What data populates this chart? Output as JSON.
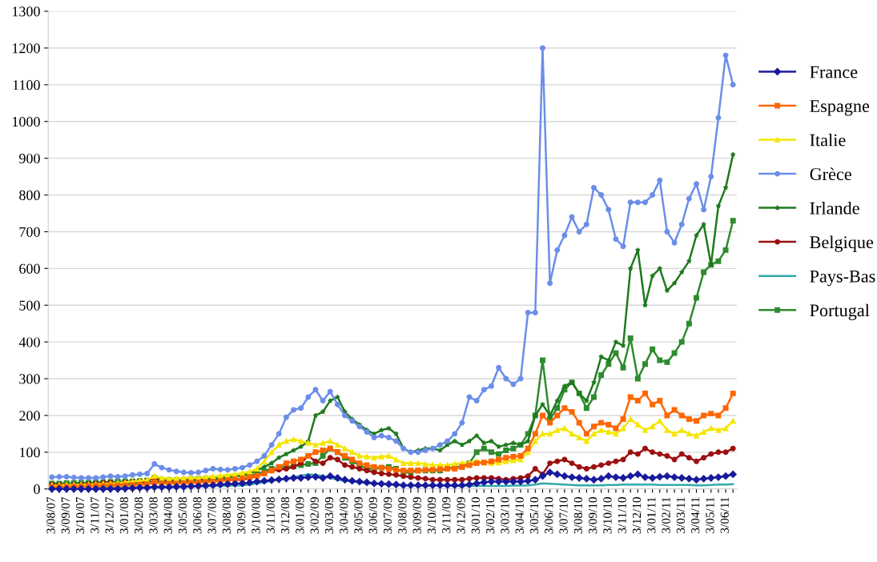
{
  "chart_data": {
    "type": "line",
    "categories": [
      "3/08/07",
      null,
      "3/09/07",
      null,
      "3/10/07",
      null,
      "3/11/07",
      null,
      "3/12/07",
      null,
      "3/01/08",
      null,
      "3/02/08",
      null,
      "3/03/08",
      null,
      "3/04/08",
      null,
      "3/05/08",
      null,
      "3/06/08",
      null,
      "3/07/08",
      null,
      "3/08/08",
      null,
      "3/09/08",
      null,
      "3/10/08",
      null,
      "3/11/08",
      null,
      "3/12/08",
      null,
      "3/01/09",
      null,
      "3/02/09",
      null,
      "3/03/09",
      null,
      "3/04/09",
      null,
      "3/05/09",
      null,
      "3/06/09",
      null,
      "3/07/09",
      null,
      "3/08/09",
      null,
      "3/09/09",
      null,
      "3/10/09",
      null,
      "3/11/09",
      null,
      "3/12/09",
      null,
      "3/01/10",
      null,
      "3/02/10",
      null,
      "3/03/10",
      null,
      "3/04/10",
      null,
      "3/05/10",
      null,
      "3/06/10",
      null,
      "3/07/10",
      null,
      "3/08/10",
      null,
      "3/09/10",
      null,
      "3/10/10",
      null,
      "3/11/10",
      null,
      "3/12/10",
      null,
      "3/01/11",
      null,
      "3/02/11",
      null,
      "3/03/11",
      null,
      "3/04/11",
      null,
      "3/05/11",
      null,
      "3/06/11",
      null
    ],
    "series": [
      {
        "name": "France",
        "color": "#1a1a9c",
        "marker": "diamond",
        "values": [
          0,
          0,
          0,
          0,
          0,
          0,
          0,
          0,
          0,
          0,
          1,
          2,
          3,
          3,
          5,
          5,
          5,
          6,
          6,
          7,
          8,
          9,
          10,
          12,
          13,
          14,
          15,
          17,
          20,
          22,
          24,
          26,
          28,
          30,
          30,
          32,
          33,
          30,
          35,
          30,
          25,
          22,
          20,
          18,
          15,
          14,
          13,
          12,
          10,
          10,
          10,
          10,
          10,
          10,
          10,
          10,
          10,
          12,
          15,
          18,
          20,
          20,
          20,
          20,
          20,
          22,
          25,
          35,
          45,
          40,
          35,
          32,
          30,
          28,
          25,
          28,
          35,
          32,
          30,
          35,
          40,
          32,
          30,
          33,
          35,
          32,
          30,
          28,
          25,
          28,
          30,
          32,
          35,
          40
        ]
      },
      {
        "name": "Espagne",
        "color": "#ff6600",
        "marker": "square",
        "values": [
          5,
          5,
          6,
          6,
          7,
          7,
          8,
          8,
          9,
          10,
          10,
          11,
          12,
          13,
          18,
          15,
          15,
          15,
          16,
          17,
          18,
          19,
          20,
          22,
          24,
          26,
          28,
          32,
          36,
          42,
          50,
          60,
          70,
          75,
          80,
          90,
          100,
          105,
          110,
          100,
          90,
          80,
          70,
          65,
          60,
          58,
          55,
          52,
          50,
          50,
          50,
          52,
          52,
          54,
          55,
          55,
          60,
          65,
          70,
          72,
          75,
          80,
          85,
          88,
          90,
          110,
          150,
          200,
          180,
          200,
          220,
          210,
          180,
          150,
          170,
          180,
          175,
          165,
          190,
          250,
          240,
          260,
          230,
          240,
          200,
          215,
          200,
          190,
          185,
          200,
          205,
          200,
          220,
          260
        ]
      },
      {
        "name": "Italie",
        "color": "#f5e600",
        "marker": "triangle",
        "values": [
          10,
          10,
          11,
          11,
          12,
          12,
          13,
          14,
          15,
          16,
          18,
          20,
          22,
          24,
          35,
          30,
          28,
          28,
          30,
          30,
          30,
          32,
          34,
          36,
          38,
          40,
          43,
          47,
          55,
          75,
          100,
          120,
          130,
          135,
          130,
          125,
          120,
          125,
          130,
          120,
          110,
          100,
          90,
          88,
          85,
          88,
          90,
          80,
          70,
          70,
          70,
          68,
          65,
          65,
          65,
          68,
          70,
          72,
          75,
          72,
          70,
          72,
          75,
          78,
          80,
          100,
          130,
          150,
          150,
          160,
          165,
          150,
          140,
          130,
          150,
          160,
          155,
          150,
          165,
          190,
          175,
          160,
          170,
          185,
          160,
          150,
          160,
          150,
          145,
          155,
          165,
          160,
          165,
          185
        ]
      },
      {
        "name": "Grèce",
        "color": "#6b8ee8",
        "marker": "circle",
        "values": [
          32,
          33,
          33,
          31,
          30,
          30,
          30,
          32,
          35,
          33,
          35,
          38,
          40,
          42,
          68,
          58,
          52,
          48,
          45,
          44,
          45,
          50,
          55,
          53,
          52,
          55,
          58,
          65,
          75,
          90,
          120,
          150,
          195,
          215,
          220,
          250,
          270,
          240,
          265,
          230,
          200,
          185,
          170,
          155,
          140,
          145,
          140,
          130,
          110,
          100,
          100,
          105,
          110,
          120,
          130,
          150,
          180,
          250,
          240,
          270,
          280,
          330,
          300,
          285,
          300,
          480,
          480,
          1200,
          560,
          650,
          690,
          740,
          700,
          720,
          820,
          800,
          760,
          680,
          660,
          780,
          780,
          780,
          800,
          840,
          700,
          670,
          720,
          790,
          830,
          760,
          850,
          1010,
          1180,
          1100
        ]
      },
      {
        "name": "Irlande",
        "color": "#1e7a1e",
        "marker": "star",
        "values": [
          10,
          10,
          11,
          11,
          12,
          12,
          13,
          13,
          14,
          14,
          15,
          15,
          16,
          17,
          20,
          19,
          19,
          19,
          20,
          21,
          22,
          23,
          25,
          27,
          30,
          33,
          37,
          42,
          50,
          60,
          70,
          85,
          95,
          105,
          115,
          130,
          200,
          210,
          240,
          250,
          210,
          190,
          175,
          160,
          150,
          160,
          165,
          150,
          110,
          100,
          105,
          110,
          110,
          105,
          120,
          130,
          120,
          130,
          145,
          125,
          130,
          115,
          120,
          125,
          120,
          130,
          200,
          230,
          200,
          240,
          280,
          290,
          260,
          240,
          290,
          360,
          350,
          400,
          390,
          600,
          650,
          500,
          580,
          600,
          540,
          560,
          590,
          620,
          690,
          720,
          610,
          770,
          820,
          910
        ]
      },
      {
        "name": "Belgique",
        "color": "#9c1010",
        "marker": "circle",
        "values": [
          12,
          11,
          10,
          11,
          12,
          13,
          15,
          16,
          18,
          10,
          18,
          19,
          20,
          22,
          30,
          20,
          22,
          22,
          23,
          23,
          24,
          24,
          25,
          25,
          25,
          25,
          25,
          30,
          35,
          42,
          50,
          52,
          55,
          60,
          70,
          90,
          75,
          70,
          85,
          80,
          65,
          60,
          55,
          50,
          45,
          42,
          40,
          38,
          35,
          32,
          30,
          28,
          25,
          25,
          25,
          25,
          25,
          28,
          30,
          30,
          30,
          28,
          25,
          28,
          30,
          35,
          55,
          40,
          70,
          75,
          80,
          70,
          60,
          55,
          60,
          65,
          70,
          75,
          80,
          100,
          95,
          110,
          100,
          95,
          90,
          80,
          95,
          85,
          75,
          85,
          95,
          100,
          100,
          110
        ]
      },
      {
        "name": "Pays-Bas",
        "color": "#33aaaa",
        "marker": "none",
        "values": [
          null,
          null,
          null,
          null,
          null,
          null,
          3,
          3,
          4,
          4,
          4,
          4,
          5,
          5,
          6,
          6,
          6,
          6,
          6,
          7,
          7,
          7,
          8,
          8,
          9,
          9,
          10,
          12,
          15,
          18,
          22,
          25,
          28,
          32,
          36,
          40,
          38,
          35,
          30,
          25,
          22,
          20,
          18,
          15,
          14,
          13,
          12,
          11,
          10,
          10,
          10,
          9,
          9,
          9,
          9,
          8,
          8,
          8,
          8,
          8,
          8,
          8,
          8,
          9,
          9,
          10,
          12,
          15,
          14,
          13,
          12,
          11,
          10,
          10,
          10,
          10,
          11,
          11,
          12,
          12,
          12,
          12,
          12,
          11,
          11,
          11,
          11,
          11,
          10,
          10,
          11,
          12,
          12,
          13
        ]
      },
      {
        "name": "Portugal",
        "color": "#2e8b2e",
        "marker": "square",
        "values": [
          15,
          15,
          16,
          16,
          17,
          17,
          18,
          18,
          19,
          20,
          20,
          21,
          22,
          23,
          30,
          25,
          24,
          24,
          25,
          26,
          27,
          28,
          29,
          30,
          32,
          34,
          36,
          38,
          40,
          48,
          55,
          58,
          60,
          62,
          65,
          68,
          70,
          90,
          110,
          100,
          85,
          75,
          65,
          55,
          55,
          58,
          60,
          55,
          45,
          45,
          50,
          50,
          50,
          50,
          55,
          60,
          60,
          70,
          100,
          110,
          100,
          95,
          105,
          110,
          120,
          150,
          200,
          350,
          190,
          220,
          270,
          290,
          260,
          220,
          250,
          310,
          340,
          370,
          330,
          410,
          300,
          340,
          380,
          350,
          345,
          370,
          400,
          450,
          520,
          590,
          610,
          620,
          650,
          730
        ]
      }
    ],
    "ylim": [
      0,
      1300
    ],
    "yticks": [
      0,
      100,
      200,
      300,
      400,
      500,
      600,
      700,
      800,
      900,
      1000,
      1100,
      1200,
      1300
    ],
    "grid": "y",
    "legend": "right",
    "line_style": "solid"
  }
}
